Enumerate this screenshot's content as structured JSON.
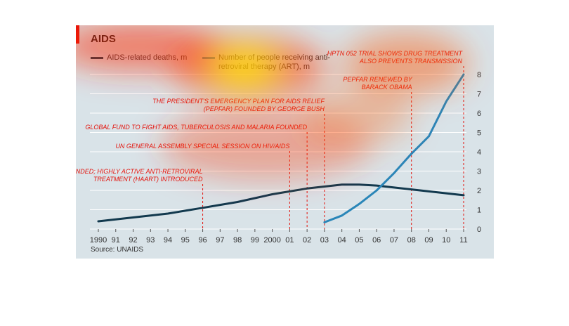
{
  "title": "AIDS",
  "source": "Source: UNAIDS",
  "colors": {
    "deaths": "#12394e",
    "art": "#2a86b8",
    "event": "#e3120b",
    "grid": "#ffffff",
    "background": "#d9e3e8"
  },
  "chart_data": {
    "type": "line",
    "title": "AIDS",
    "x": [
      "1990",
      "91",
      "92",
      "93",
      "94",
      "95",
      "96",
      "97",
      "98",
      "99",
      "2000",
      "01",
      "02",
      "03",
      "04",
      "05",
      "06",
      "07",
      "08",
      "09",
      "10",
      "11"
    ],
    "ylim": [
      0,
      8
    ],
    "yticks": [
      "0",
      "1",
      "2",
      "3",
      "4",
      "5",
      "6",
      "7",
      "8"
    ],
    "grid": true,
    "legend_position": "top-left",
    "series": [
      {
        "name": "AIDS-related deaths, m",
        "color": "#12394e",
        "values": [
          0.4,
          0.5,
          0.6,
          0.7,
          0.8,
          0.95,
          1.1,
          1.25,
          1.4,
          1.6,
          1.8,
          1.95,
          2.1,
          2.2,
          2.3,
          2.3,
          2.25,
          2.15,
          2.05,
          1.95,
          1.85,
          1.75
        ]
      },
      {
        "name": "Number of people receiving anti-retroviral therapy (ART), m",
        "color": "#2a86b8",
        "values": [
          null,
          null,
          null,
          null,
          null,
          null,
          null,
          null,
          null,
          null,
          null,
          null,
          null,
          0.35,
          0.7,
          1.3,
          2.0,
          2.9,
          3.9,
          4.8,
          6.6,
          8.0
        ]
      }
    ],
    "annotations": [
      {
        "x": "96",
        "lines": [
          "UNAIDS FOUNDED; HIGHLY ACTIVE ANTI-RETROVIRAL",
          "TREATMENT (HAART) INTRODUCED"
        ]
      },
      {
        "x": "01",
        "lines": [
          "UN GENERAL ASSEMBLY SPECIAL SESSION ON HIV/AIDS"
        ]
      },
      {
        "x": "02",
        "lines": [
          "GLOBAL FUND TO FIGHT AIDS, TUBERCULOSIS AND MALARIA FOUNDED"
        ]
      },
      {
        "x": "03",
        "lines": [
          "THE PRESIDENT'S EMERGENCY PLAN FOR AIDS RELIEF",
          "(PEPFAR) FOUNDED BY GEORGE BUSH"
        ]
      },
      {
        "x": "08",
        "lines": [
          "PEPFAR RENEWED BY",
          "BARACK OBAMA"
        ]
      },
      {
        "x": "11",
        "lines": [
          "HPTN 052 TRIAL SHOWS DRUG TREATMENT",
          "ALSO PREVENTS TRANSMISSION"
        ]
      }
    ]
  }
}
